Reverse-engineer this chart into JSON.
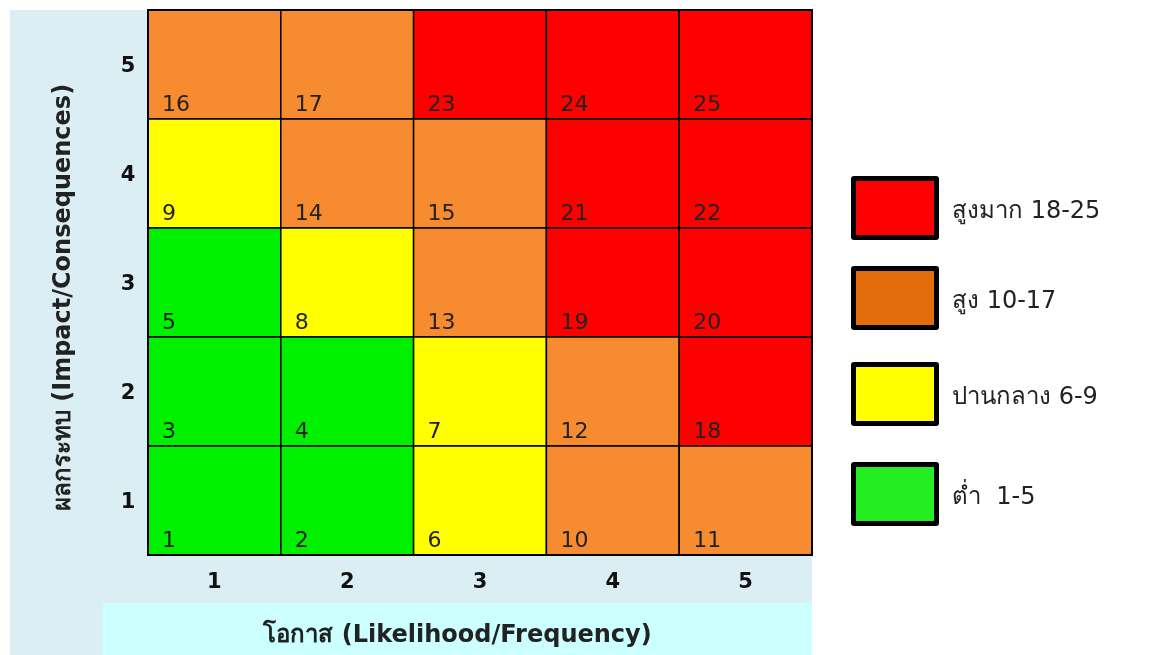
{
  "chart_data": {
    "type": "heatmap",
    "xlabel": "โอกาส (Likelihood/Frequency)",
    "ylabel": "ผลกระทบ (Impact/Consequences)",
    "categories": [
      "1",
      "2",
      "3",
      "4",
      "5"
    ],
    "y_categories": [
      "5",
      "4",
      "3",
      "2",
      "1"
    ],
    "cells": [
      [
        16,
        17,
        23,
        24,
        25
      ],
      [
        9,
        14,
        15,
        21,
        22
      ],
      [
        5,
        8,
        13,
        19,
        20
      ],
      [
        3,
        4,
        7,
        12,
        18
      ],
      [
        1,
        2,
        6,
        10,
        11
      ]
    ],
    "colors": [
      [
        "#f68b30",
        "#f68b30",
        "#ff0000",
        "#ff0000",
        "#ff0000"
      ],
      [
        "#ffff00",
        "#f68b30",
        "#f68b30",
        "#ff0000",
        "#ff0000"
      ],
      [
        "#00f000",
        "#ffff00",
        "#f68b30",
        "#ff0000",
        "#ff0000"
      ],
      [
        "#00f000",
        "#00f000",
        "#ffff00",
        "#f68b30",
        "#ff0000"
      ],
      [
        "#00f000",
        "#00f000",
        "#ffff00",
        "#f68b30",
        "#f68b30"
      ]
    ],
    "data_labels": true,
    "legend": "right",
    "series": [
      {
        "name": "สูงมาก 18-25",
        "color": "#ff0000",
        "values": [
          null,
          null,
          null,
          null,
          null
        ]
      },
      {
        "name": "สูง 10-17",
        "color": "#e36c0a",
        "values": [
          null,
          null,
          null,
          null,
          null
        ]
      },
      {
        "name": "ปานกลาง 6-9",
        "color": "#ffff00",
        "values": [
          null,
          null,
          null,
          null,
          null
        ]
      },
      {
        "name": "ต่ำ  1-5",
        "color": "#22ee22",
        "values": [
          null,
          null,
          null,
          null,
          null
        ]
      }
    ]
  }
}
